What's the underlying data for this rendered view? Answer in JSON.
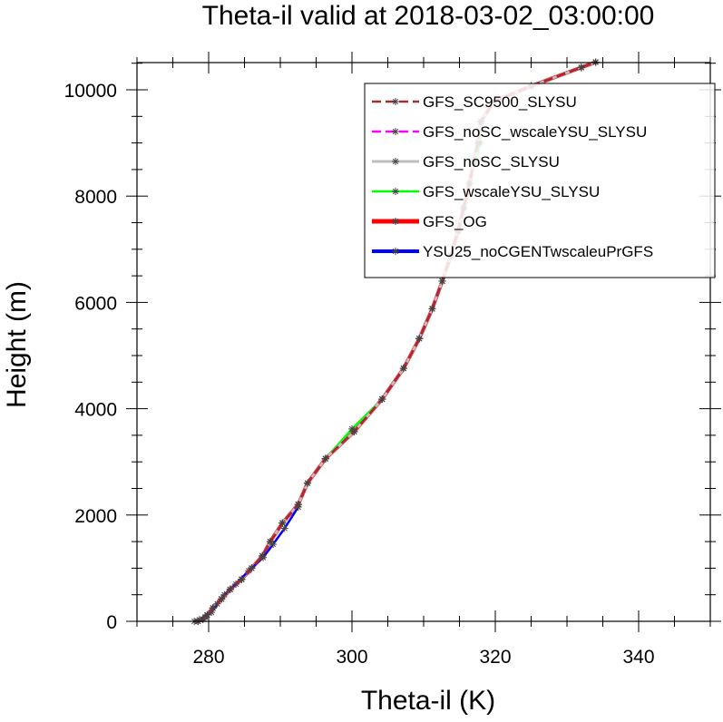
{
  "chart_data": {
    "type": "line",
    "title": "Theta-il valid at 2018-03-02_03:00:00",
    "xlabel": "Theta-il (K)",
    "ylabel": "Height (m)",
    "xlim": [
      270,
      350
    ],
    "ylim": [
      0,
      10500
    ],
    "xticks": [
      280,
      300,
      320,
      340
    ],
    "yticks": [
      0,
      2000,
      4000,
      6000,
      8000,
      10000
    ],
    "grid": false,
    "legend_position": "top-right",
    "series": [
      {
        "name": "GFS_SC9500_SLYSU",
        "color": "#a52a2a",
        "dash": "dashed",
        "marker": "asterisk",
        "points": [
          [
            278.5,
            0
          ],
          [
            279.2,
            40
          ],
          [
            279.8,
            120
          ],
          [
            280.6,
            250
          ],
          [
            281.8,
            420
          ],
          [
            283.0,
            600
          ],
          [
            284.6,
            790
          ],
          [
            286.0,
            1000
          ],
          [
            287.5,
            1230
          ],
          [
            288.6,
            1500
          ],
          [
            290.3,
            1850
          ],
          [
            292.5,
            2200
          ],
          [
            293.8,
            2600
          ],
          [
            296.3,
            3060
          ],
          [
            300.3,
            3570
          ],
          [
            304.2,
            4180
          ],
          [
            307.2,
            4760
          ],
          [
            309.4,
            5320
          ],
          [
            311.2,
            5880
          ],
          [
            312.6,
            6400
          ],
          [
            313.8,
            6880
          ],
          [
            314.8,
            7340
          ],
          [
            315.6,
            7780
          ],
          [
            316.4,
            8240
          ],
          [
            317.0,
            8650
          ],
          [
            317.6,
            9000
          ],
          [
            318.0,
            9400
          ],
          [
            319.8,
            9780
          ],
          [
            325.0,
            10070
          ],
          [
            332.0,
            10420
          ],
          [
            334.0,
            10520
          ]
        ]
      },
      {
        "name": "GFS_noSC_wscaleYSU_SLYSU",
        "color": "#ff00ff",
        "dash": "dashed",
        "marker": "asterisk",
        "points": [
          [
            278.5,
            0
          ],
          [
            279.2,
            40
          ],
          [
            279.8,
            120
          ],
          [
            280.6,
            250
          ],
          [
            281.8,
            420
          ],
          [
            283.0,
            600
          ],
          [
            284.6,
            790
          ],
          [
            286.0,
            1000
          ],
          [
            287.5,
            1230
          ],
          [
            288.6,
            1500
          ],
          [
            290.3,
            1850
          ],
          [
            292.5,
            2200
          ],
          [
            293.8,
            2600
          ],
          [
            296.3,
            3060
          ],
          [
            300.3,
            3570
          ],
          [
            304.2,
            4180
          ],
          [
            307.2,
            4760
          ],
          [
            309.4,
            5320
          ],
          [
            311.2,
            5880
          ],
          [
            312.6,
            6400
          ],
          [
            313.8,
            6880
          ],
          [
            314.8,
            7340
          ],
          [
            315.6,
            7780
          ],
          [
            316.4,
            8240
          ],
          [
            317.0,
            8650
          ],
          [
            317.6,
            9000
          ],
          [
            318.0,
            9400
          ],
          [
            319.8,
            9780
          ],
          [
            325.0,
            10070
          ],
          [
            332.0,
            10420
          ],
          [
            334.0,
            10520
          ]
        ]
      },
      {
        "name": "GFS_noSC_SLYSU",
        "color": "#bebebe",
        "dash": "solid",
        "marker": "asterisk",
        "points": [
          [
            278.5,
            0
          ],
          [
            279.2,
            40
          ],
          [
            279.8,
            120
          ],
          [
            280.6,
            250
          ],
          [
            281.8,
            420
          ],
          [
            283.0,
            600
          ],
          [
            284.6,
            790
          ],
          [
            286.0,
            1000
          ],
          [
            287.5,
            1230
          ],
          [
            288.6,
            1500
          ],
          [
            290.3,
            1850
          ],
          [
            292.5,
            2200
          ],
          [
            293.8,
            2600
          ],
          [
            296.3,
            3060
          ],
          [
            300.3,
            3570
          ],
          [
            304.2,
            4180
          ],
          [
            307.2,
            4760
          ],
          [
            309.4,
            5320
          ],
          [
            311.2,
            5880
          ],
          [
            312.6,
            6400
          ],
          [
            313.8,
            6880
          ],
          [
            314.8,
            7340
          ],
          [
            315.6,
            7780
          ],
          [
            316.4,
            8240
          ],
          [
            317.0,
            8650
          ],
          [
            317.6,
            9000
          ],
          [
            318.0,
            9400
          ],
          [
            319.8,
            9780
          ],
          [
            325.0,
            10070
          ],
          [
            332.0,
            10420
          ],
          [
            334.0,
            10520
          ]
        ]
      },
      {
        "name": "GFS_wscaleYSU_SLYSU",
        "color": "#00ff00",
        "dash": "solid",
        "marker": "asterisk",
        "points": [
          [
            278.5,
            0
          ],
          [
            279.2,
            40
          ],
          [
            279.8,
            120
          ],
          [
            280.6,
            250
          ],
          [
            281.8,
            420
          ],
          [
            283.0,
            600
          ],
          [
            284.6,
            790
          ],
          [
            286.0,
            1000
          ],
          [
            287.5,
            1230
          ],
          [
            288.6,
            1500
          ],
          [
            290.3,
            1850
          ],
          [
            292.5,
            2200
          ],
          [
            293.8,
            2600
          ],
          [
            296.3,
            3060
          ],
          [
            300.0,
            3620
          ],
          [
            304.2,
            4180
          ],
          [
            307.2,
            4760
          ],
          [
            309.4,
            5320
          ],
          [
            311.2,
            5880
          ],
          [
            312.6,
            6400
          ],
          [
            313.8,
            6880
          ],
          [
            314.8,
            7340
          ],
          [
            315.6,
            7780
          ],
          [
            316.4,
            8240
          ],
          [
            317.2,
            8650
          ],
          [
            317.9,
            9000
          ],
          [
            318.0,
            9400
          ],
          [
            319.8,
            9780
          ],
          [
            325.0,
            10070
          ],
          [
            332.0,
            10420
          ],
          [
            334.0,
            10520
          ]
        ]
      },
      {
        "name": "GFS_OG",
        "color": "#ff0000",
        "dash": "solid",
        "marker": "asterisk",
        "points": [
          [
            278.5,
            0
          ],
          [
            279.2,
            40
          ],
          [
            279.8,
            120
          ],
          [
            280.6,
            250
          ],
          [
            281.8,
            420
          ],
          [
            283.0,
            600
          ],
          [
            284.6,
            790
          ],
          [
            286.0,
            1000
          ],
          [
            287.5,
            1230
          ],
          [
            288.6,
            1500
          ],
          [
            290.3,
            1850
          ],
          [
            292.5,
            2200
          ],
          [
            293.8,
            2600
          ],
          [
            296.3,
            3060
          ],
          [
            300.3,
            3570
          ],
          [
            304.2,
            4180
          ],
          [
            307.2,
            4760
          ],
          [
            309.4,
            5320
          ],
          [
            311.2,
            5880
          ],
          [
            312.6,
            6400
          ],
          [
            313.8,
            6880
          ],
          [
            314.8,
            7340
          ],
          [
            315.6,
            7780
          ],
          [
            316.4,
            8240
          ],
          [
            317.0,
            8650
          ],
          [
            317.6,
            9000
          ],
          [
            318.0,
            9400
          ],
          [
            319.8,
            9780
          ],
          [
            325.0,
            10070
          ],
          [
            332.0,
            10420
          ],
          [
            334.0,
            10520
          ]
        ]
      },
      {
        "name": "YSU25_noCGENTwscaleuPrGFS",
        "color": "#0000ff",
        "dash": "solid",
        "marker": "asterisk",
        "points": [
          [
            278.0,
            0
          ],
          [
            278.7,
            30
          ],
          [
            279.5,
            80
          ],
          [
            280.4,
            170
          ],
          [
            281.2,
            330
          ],
          [
            282.2,
            500
          ],
          [
            283.8,
            700
          ],
          [
            285.6,
            950
          ],
          [
            287.6,
            1200
          ],
          [
            289.0,
            1450
          ],
          [
            290.6,
            1750
          ],
          [
            292.5,
            2150
          ]
        ]
      }
    ]
  }
}
